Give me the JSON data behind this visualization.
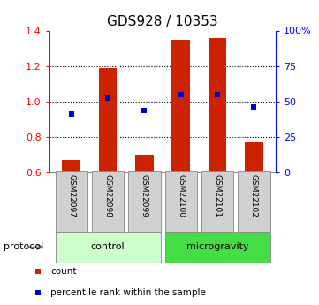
{
  "title": "GDS928 / 10353",
  "samples": [
    "GSM22097",
    "GSM22098",
    "GSM22099",
    "GSM22100",
    "GSM22101",
    "GSM22102"
  ],
  "bar_values": [
    0.67,
    1.19,
    0.7,
    1.35,
    1.36,
    0.77
  ],
  "scatter_values": [
    0.93,
    1.02,
    0.95,
    1.04,
    1.04,
    0.97
  ],
  "bar_color": "#cc2200",
  "scatter_color": "#0000cc",
  "ylim_left": [
    0.6,
    1.4
  ],
  "ylim_right": [
    0,
    100
  ],
  "yticks_left": [
    0.6,
    0.8,
    1.0,
    1.2,
    1.4
  ],
  "yticks_right": [
    0,
    25,
    50,
    75,
    100
  ],
  "ytick_labels_right": [
    "0",
    "25",
    "50",
    "75",
    "100%"
  ],
  "hlines": [
    0.8,
    1.0,
    1.2
  ],
  "groups": [
    {
      "label": "control",
      "indices": [
        0,
        1,
        2
      ],
      "color": "#ccffcc"
    },
    {
      "label": "microgravity",
      "indices": [
        3,
        4,
        5
      ],
      "color": "#44dd44"
    }
  ],
  "protocol_label": "protocol",
  "legend_items": [
    {
      "label": "count",
      "color": "#cc2200"
    },
    {
      "label": "percentile rank within the sample",
      "color": "#0000cc"
    }
  ],
  "bar_bottom": 0.6,
  "bar_width": 0.5,
  "sample_box_color": "#d0d0d0",
  "sample_box_edge": "#888888",
  "title_fontsize": 11
}
